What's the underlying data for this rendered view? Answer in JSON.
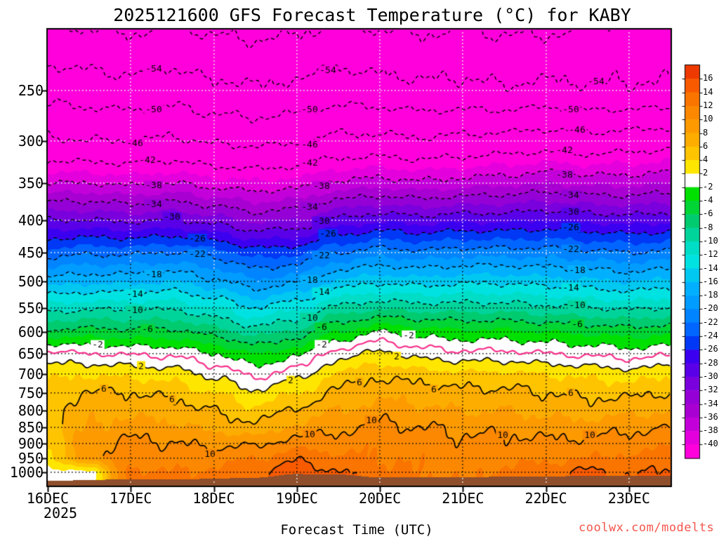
{
  "title": {
    "text": "2025121600 GFS Forecast Temperature (°C) for KABY"
  },
  "x_axis": {
    "label": "Forecast Time (UTC)",
    "tick_labels": [
      "16DEC",
      "17DEC",
      "18DEC",
      "19DEC",
      "20DEC",
      "21DEC",
      "22DEC",
      "23DEC"
    ],
    "year_label": "2025"
  },
  "y_axis": {
    "tick_labels": [
      "250",
      "300",
      "350",
      "400",
      "450",
      "500",
      "550",
      "600",
      "650",
      "700",
      "750",
      "800",
      "850",
      "900",
      "950",
      "1000"
    ]
  },
  "watermark": {
    "text": "coolwx.com/modelts",
    "color": "#f4564d"
  },
  "chart_data": {
    "type": "heatmap",
    "title": "2025121600 GFS Forecast Temperature (°C) for KABY",
    "xlabel": "Forecast Time (UTC)",
    "hours_range": [
      0,
      180
    ],
    "pressure_range": [
      200,
      1050
    ],
    "log_pressure_axis": true,
    "grid": "dotted",
    "x_hours": [
      0,
      12,
      24,
      36,
      48,
      60,
      72,
      84,
      96,
      108,
      120,
      132,
      144,
      156,
      168,
      180
    ],
    "pressure_levels": [
      200,
      250,
      300,
      350,
      400,
      450,
      500,
      550,
      600,
      650,
      700,
      750,
      800,
      850,
      900,
      950,
      1000,
      1050
    ],
    "temperature_grid_c": [
      [
        -57.5,
        -58,
        -58.5,
        -57.5,
        -58.5,
        -59,
        -58.5,
        -57.5,
        -58,
        -58.5,
        -58,
        -58.5,
        -58.5,
        -58,
        -57,
        -56.5
      ],
      [
        -51.5,
        -52,
        -52.5,
        -52,
        -53,
        -53.5,
        -53,
        -52,
        -52.5,
        -53,
        -53,
        -53.5,
        -53,
        -53.5,
        -53.5,
        -53.5
      ],
      [
        -45.5,
        -46,
        -46,
        -45.5,
        -46.5,
        -47,
        -46.5,
        -45,
        -45,
        -45.5,
        -45,
        -44.5,
        -44,
        -44.5,
        -44,
        -43.5
      ],
      [
        -38,
        -38,
        -38.5,
        -38,
        -39,
        -39.5,
        -39,
        -37.5,
        -37,
        -37.5,
        -37,
        -36.5,
        -36,
        -36.5,
        -36.5,
        -36
      ],
      [
        -30,
        -30,
        -30.5,
        -30,
        -31,
        -32.5,
        -32,
        -29.5,
        -28.5,
        -29,
        -28.5,
        -28.5,
        -28,
        -28.5,
        -29,
        -28.5
      ],
      [
        -23,
        -22.5,
        -22.5,
        -22,
        -23,
        -25,
        -24.5,
        -22,
        -21,
        -21.5,
        -21,
        -21,
        -21,
        -21.5,
        -22,
        -21.5
      ],
      [
        -17,
        -16.5,
        -16.5,
        -16,
        -17.5,
        -19.5,
        -18.5,
        -15.5,
        -14.5,
        -15,
        -14.5,
        -14.5,
        -15,
        -15.5,
        -16,
        -15.5
      ],
      [
        -11,
        -10.5,
        -10.5,
        -10.5,
        -12,
        -14,
        -12.5,
        -9.5,
        -8.5,
        -9,
        -9,
        -9,
        -9.5,
        -10,
        -10.5,
        -10
      ],
      [
        -5.5,
        -5.3,
        -5.5,
        -5.5,
        -7,
        -9,
        -7.5,
        -4,
        -2,
        -3,
        -3.5,
        -3.5,
        -4,
        -4.5,
        -5,
        -4.5
      ],
      [
        0.5,
        0,
        -0.3,
        -0.5,
        -2,
        -4,
        -2.5,
        1,
        2.5,
        1,
        0.5,
        0.5,
        0,
        -0.5,
        -1,
        -0.5
      ],
      [
        3.5,
        3.8,
        3.5,
        3,
        1.5,
        -0.5,
        1,
        4.5,
        5.5,
        5,
        4.5,
        4.5,
        4,
        3.5,
        3,
        3.5
      ],
      [
        5,
        6.2,
        6,
        5.5,
        4,
        2.5,
        4,
        6.5,
        7.5,
        7,
        6.5,
        6.5,
        6,
        5.5,
        5.5,
        6
      ],
      [
        5.8,
        7.3,
        7.5,
        7,
        6,
        4.5,
        6.5,
        8,
        9,
        8.5,
        8,
        8,
        7.5,
        7,
        7.5,
        8
      ],
      [
        5.5,
        8,
        9,
        8.5,
        7.5,
        6.5,
        8.5,
        9.5,
        10.5,
        10,
        9.5,
        9.5,
        9,
        9,
        9.5,
        10
      ],
      [
        4.5,
        9,
        10.5,
        10,
        9.5,
        9.5,
        11,
        11,
        11.5,
        11,
        10.5,
        10.5,
        10.5,
        10.5,
        11,
        11.5
      ],
      [
        3.5,
        9.5,
        11,
        11,
        11,
        12,
        13.5,
        12.5,
        12,
        11.5,
        11,
        11.5,
        11.5,
        12,
        12.5,
        13
      ],
      [
        1,
        1.5,
        12.5,
        12,
        12.5,
        13.5,
        15.5,
        14,
        12.5,
        12,
        11.5,
        12.5,
        13,
        14.5,
        13.5,
        14.5
      ],
      [
        0.5,
        1,
        13,
        12.5,
        13,
        14.5,
        16.5,
        15,
        13,
        12.5,
        12,
        13,
        13.5,
        15,
        14.5,
        15
      ]
    ],
    "fill_interval_c": 2,
    "line_interval_c": 4,
    "fill_boundaries_c": [
      16,
      14,
      12,
      10,
      8,
      6,
      4,
      2,
      -2,
      -4,
      -6,
      -8,
      -10,
      -12,
      -14,
      -16,
      -18,
      -20,
      -22,
      -24,
      -26,
      -28,
      -30,
      -32,
      -34,
      -36,
      -38,
      -40
    ],
    "fill_colors": [
      "#ee3a00",
      "#f85a00",
      "#fa7400",
      "#fb8800",
      "#fc9a00",
      "#fdad00",
      "#ffc400",
      "#ffe600",
      "#ffffff",
      "#00e000",
      "#00d535",
      "#00cb6e",
      "#00d49b",
      "#00ddc6",
      "#00e2e2",
      "#00c8f0",
      "#00b0ff",
      "#009cff",
      "#0084ff",
      "#0066ff",
      "#0038f5",
      "#3c00f0",
      "#5a00e8",
      "#7a00de",
      "#9400d6",
      "#a800d2",
      "#c400da",
      "#e400dc",
      "#ff00dc"
    ],
    "white_band_c": [
      -2,
      2
    ],
    "dashed_line_levels": [
      -58,
      -54,
      -50,
      -46,
      -42,
      -38,
      -34,
      -30,
      -26,
      -22,
      -18,
      -14,
      -10,
      -6,
      -2
    ],
    "solid_line_levels": [
      2,
      6,
      10,
      14
    ],
    "zero_line": {
      "value": 0,
      "color": "#f7308c"
    },
    "contour_labels": [
      {
        "level": -58,
        "x": [
          0.38
        ]
      },
      {
        "level": -54,
        "x": [
          0.17,
          0.45,
          0.88
        ]
      },
      {
        "level": -50,
        "x": [
          0.17,
          0.42,
          0.84
        ]
      },
      {
        "level": -46,
        "x": [
          0.14,
          0.42,
          0.85
        ]
      },
      {
        "level": -42,
        "x": [
          0.16,
          0.42,
          0.83
        ]
      },
      {
        "level": -38,
        "x": [
          0.17,
          0.44,
          0.83
        ]
      },
      {
        "level": -34,
        "x": [
          0.17,
          0.42,
          0.84
        ]
      },
      {
        "level": -30,
        "x": [
          0.2,
          0.44,
          0.84
        ]
      },
      {
        "level": -26,
        "x": [
          0.24,
          0.45,
          0.84
        ]
      },
      {
        "level": -22,
        "x": [
          0.24,
          0.44,
          0.84
        ]
      },
      {
        "level": -18,
        "x": [
          0.17,
          0.42,
          0.85
        ]
      },
      {
        "level": -14,
        "x": [
          0.14,
          0.44,
          0.84
        ]
      },
      {
        "level": -10,
        "x": [
          0.14,
          0.42,
          0.85
        ]
      },
      {
        "level": -6,
        "x": [
          0.16,
          0.44,
          0.85
        ]
      },
      {
        "level": -2,
        "x": [
          0.08,
          0.44,
          0.58
        ]
      },
      {
        "level": 2,
        "x": [
          0.15,
          0.39,
          0.56
        ]
      },
      {
        "level": 6,
        "x": [
          0.09,
          0.2,
          0.5,
          0.62,
          0.84
        ]
      },
      {
        "level": 10,
        "x": [
          0.26,
          0.42,
          0.52,
          0.73,
          0.87
        ]
      },
      {
        "level": 14,
        "x": [
          0.79,
          0.9
        ]
      }
    ],
    "terrain": {
      "color": "#8f4f2c",
      "pressure_by_column": [
        1030,
        1028,
        1026,
        1024,
        1022,
        1020,
        1005,
        1006,
        1018,
        1018,
        1016,
        1014,
        1016,
        1012,
        1010,
        1012
      ]
    },
    "colorbar": {
      "tick_labels": [
        "16",
        "14",
        "12",
        "10",
        "8",
        "6",
        "4",
        "2",
        "-2",
        "-4",
        "-6",
        "-8",
        "-10",
        "-12",
        "-14",
        "-16",
        "-18",
        "-20",
        "-22",
        "-24",
        "-26",
        "-28",
        "-30",
        "-32",
        "-34",
        "-36",
        "-38",
        "-40"
      ],
      "position": "right"
    }
  }
}
